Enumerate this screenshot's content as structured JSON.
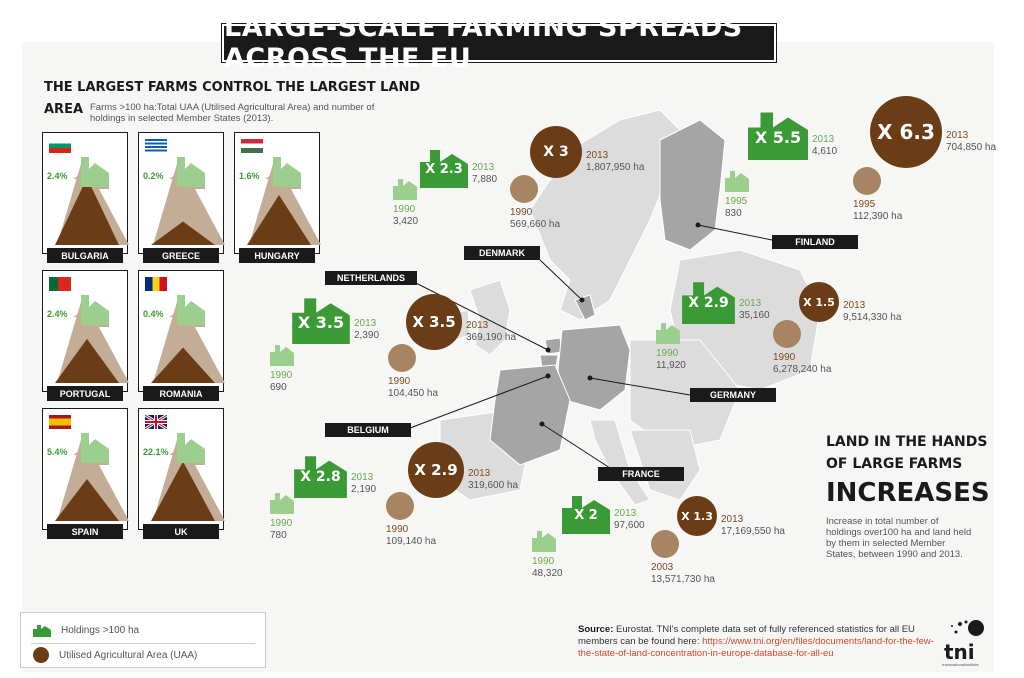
{
  "title": "LARGE-SCALE FARMING SPREADS ACROSS THE EU",
  "left_heading_1": "THE LARGEST FARMS CONTROL THE LARGEST LAND",
  "left_heading_2": "AREA",
  "left_subtitle": "Farms >100 ha:Total UAA (Utilised Agricultural Area) and number of holdings in selected Member States (2013).",
  "countries": [
    {
      "name": "BULGARIA",
      "holdings": "2.4%",
      "uaa": "83.6%"
    },
    {
      "name": "GREECE",
      "holdings": "0.2%",
      "uaa": "34.8%"
    },
    {
      "name": "HUNGARY",
      "holdings": "1.6%",
      "uaa": "64.4%"
    },
    {
      "name": "PORTUGAL",
      "holdings": "2.4%",
      "uaa": "57.9%"
    },
    {
      "name": "ROMANIA",
      "holdings": "0.4%",
      "uaa": "48.3%"
    },
    {
      "name": "SPAIN",
      "holdings": "5.4%",
      "uaa": "55.5%"
    },
    {
      "name": "UK",
      "holdings": "22.1%",
      "uaa": "75.0%"
    }
  ],
  "map_labels": {
    "denmark": "DENMARK",
    "finland": "FINLAND",
    "netherlands": "NETHERLANDS",
    "germany": "GERMANY",
    "belgium": "BELGIUM",
    "france": "FRANCE"
  },
  "stats": {
    "denmark_h": {
      "mult": "X 2.3",
      "y2": "2013",
      "v2": "7,880",
      "y1": "1990",
      "v1": "3,420"
    },
    "denmark_a": {
      "mult": "X 3",
      "y2": "2013",
      "v2": "1,807,950 ha",
      "y1": "1990",
      "v1": "569,660 ha"
    },
    "finland_h": {
      "mult": "X 5.5",
      "y2": "2013",
      "v2": "4,610",
      "y1": "1995",
      "v1": "830"
    },
    "finland_a": {
      "mult": "X 6.3",
      "y2": "2013",
      "v2": "704,850 ha",
      "y1": "1995",
      "v1": "112,390 ha"
    },
    "netherlands_h": {
      "mult": "X 3.5",
      "y2": "2013",
      "v2": "2,390",
      "y1": "1990",
      "v1": "690"
    },
    "netherlands_a": {
      "mult": "X 3.5",
      "y2": "2013",
      "v2": "369,190 ha",
      "y1": "1990",
      "v1": "104,450 ha"
    },
    "germany_h": {
      "mult": "X 2.9",
      "y2": "2013",
      "v2": "35,160",
      "y1": "1990",
      "v1": "11,920"
    },
    "germany_a": {
      "mult": "X 1.5",
      "y2": "2013",
      "v2": "9,514,330 ha",
      "y1": "1990",
      "v1": "6,278,240 ha"
    },
    "belgium_h": {
      "mult": "X 2.8",
      "y2": "2013",
      "v2": "2,190",
      "y1": "1990",
      "v1": "780"
    },
    "belgium_a": {
      "mult": "X 2.9",
      "y2": "2013",
      "v2": "319,600 ha",
      "y1": "1990",
      "v1": "109,140 ha"
    },
    "france_h": {
      "mult": "X 2",
      "y2": "2013",
      "v2": "97,600",
      "y1": "1990",
      "v1": "48,320"
    },
    "france_a": {
      "mult": "X 1.3",
      "y2": "2013",
      "v2": "17,169,550 ha",
      "y1": "2003",
      "v1": "13,571,730 ha"
    }
  },
  "right_heading_1": "LAND IN THE HANDS",
  "right_heading_2": "OF LARGE FARMS",
  "right_heading_3": "INCREASES",
  "right_desc": "Increase in total number of holdings over100 ha and land held by them in selected Member States, between 1990 and 2013.",
  "legend": {
    "holdings": "Holdings >100 ha",
    "uaa": "Utilised Agricultural Area (UAA)"
  },
  "source": {
    "label": "Source:",
    "text": "Eurostat. TNI's complete data set of fully referenced statistics for all EU members can be found here:",
    "link": "https://www.tni.org/en/files/documents/land-for-the-few-the-state-of-land-concentration-in-europe-database-for-all-eu"
  },
  "logo": {
    "text": "tni",
    "sub": "transnationalinstitute"
  },
  "colors": {
    "green": "#3a9a36",
    "brown": "#6b3d16",
    "light_brown": "#a88562",
    "light_green": "#9ccf8e"
  }
}
